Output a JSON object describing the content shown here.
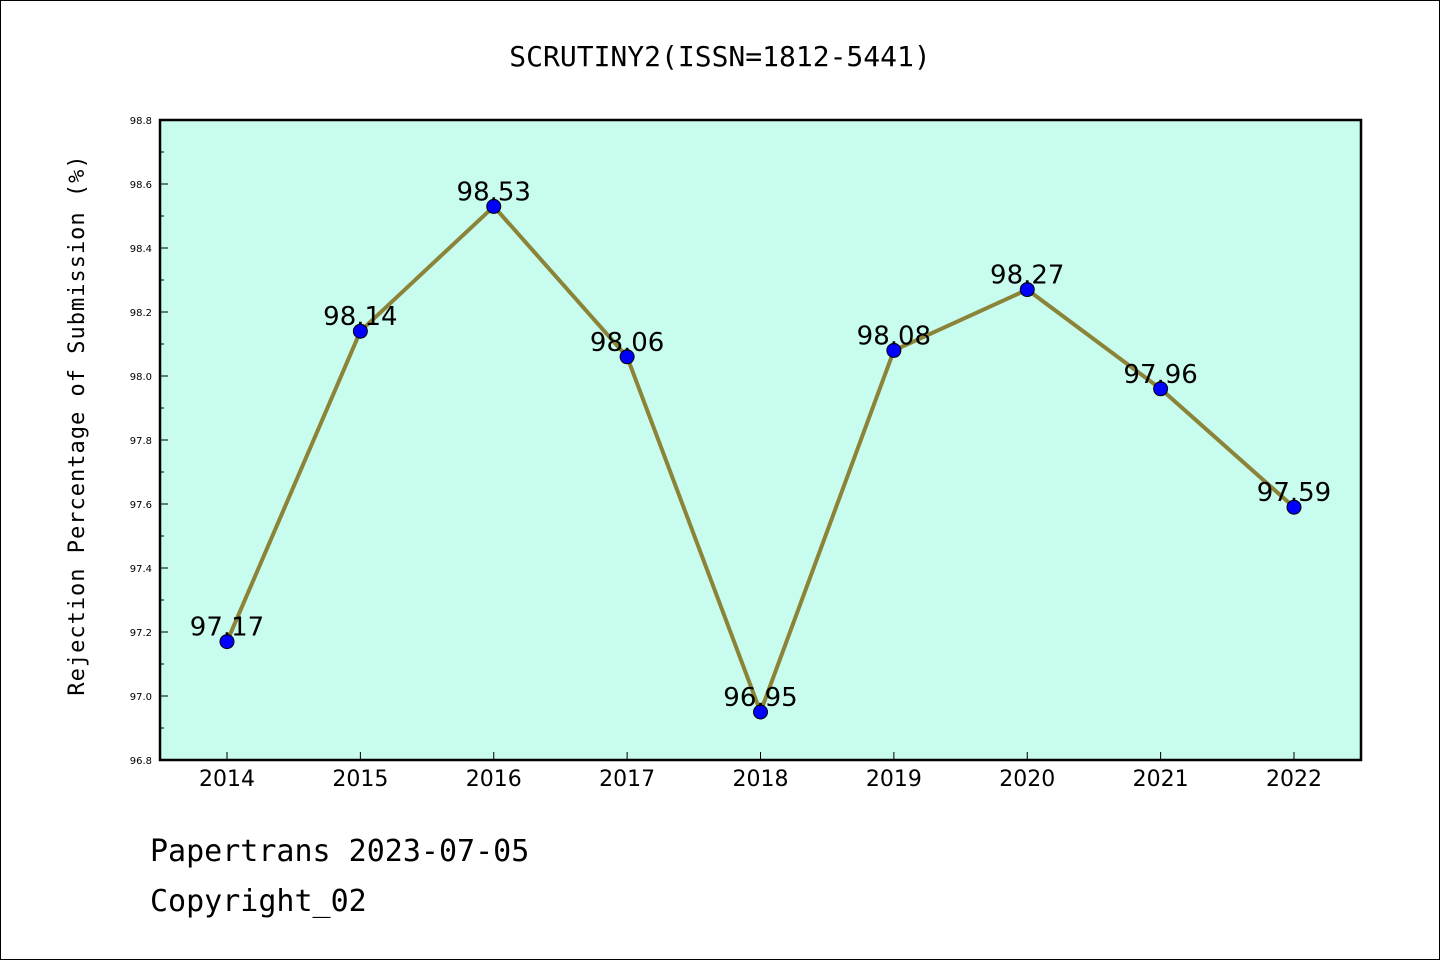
{
  "chart_data": {
    "type": "line",
    "title": "SCRUTINY2(ISSN=1812-5441)",
    "xlabel": "",
    "ylabel": "Rejection Percentage of Submission (%)",
    "categories": [
      "2014",
      "2015",
      "2016",
      "2017",
      "2018",
      "2019",
      "2020",
      "2021",
      "2022"
    ],
    "series": [
      {
        "values": [
          97.17,
          98.14,
          98.53,
          98.06,
          96.95,
          98.08,
          98.27,
          97.96,
          97.59
        ],
        "data_labels": [
          "97.17",
          "98.14",
          "98.53",
          "98.06",
          "96.95",
          "98.08",
          "98.27",
          "97.96",
          "97.59"
        ]
      }
    ],
    "ylim": [
      96.8,
      98.8
    ],
    "yticks": [
      "96.8",
      "97.0",
      "97.2",
      "97.4",
      "97.6",
      "97.8",
      "98.0",
      "98.2",
      "98.4",
      "98.6",
      "98.8"
    ],
    "grid": false,
    "colors": {
      "plot_background": "#c8fcee",
      "line": "#8b8438",
      "marker": "#0000ff"
    }
  },
  "footer": {
    "line1": "Papertrans 2023-07-05",
    "line2": "Copyright_02"
  }
}
